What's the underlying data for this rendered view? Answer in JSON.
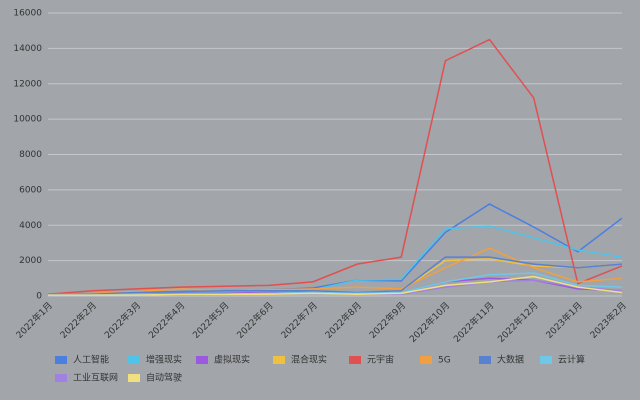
{
  "chart_data": {
    "type": "line",
    "categories": [
      "2022年1月",
      "2022年2月",
      "2022年3月",
      "2022年4月",
      "2022年5月",
      "2022年6月",
      "2022年7月",
      "2022年8月",
      "2022年9月",
      "2022年10月",
      "2022年11月",
      "2022年12月",
      "2023年1月",
      "2023年2月"
    ],
    "series": [
      {
        "name": "人工智能",
        "color": "#4a7fe0",
        "values": [
          100,
          150,
          200,
          250,
          300,
          350,
          450,
          900,
          850,
          3600,
          5200,
          3900,
          2500,
          4400
        ]
      },
      {
        "name": "增强现实",
        "color": "#4fc3e8",
        "values": [
          50,
          100,
          150,
          200,
          250,
          300,
          350,
          900,
          950,
          3800,
          3950,
          3300,
          2600,
          2200
        ]
      },
      {
        "name": "虚拟现实",
        "color": "#9b59e0",
        "values": [
          50,
          50,
          100,
          150,
          150,
          200,
          200,
          150,
          200,
          800,
          1000,
          900,
          400,
          300
        ]
      },
      {
        "name": "混合现实",
        "color": "#f0c040",
        "values": [
          50,
          50,
          100,
          100,
          100,
          150,
          200,
          200,
          300,
          2000,
          2100,
          1700,
          1600,
          1800
        ]
      },
      {
        "name": "元宇宙",
        "color": "#e05050",
        "values": [
          100,
          300,
          400,
          500,
          550,
          600,
          800,
          1800,
          2200,
          13300,
          14500,
          11200,
          700,
          1700
        ]
      },
      {
        "name": "5G",
        "color": "#f0a040",
        "values": [
          100,
          150,
          250,
          400,
          300,
          350,
          400,
          500,
          400,
          1600,
          2700,
          1600,
          800,
          1000
        ]
      },
      {
        "name": "大数据",
        "color": "#5a80d0",
        "values": [
          100,
          100,
          200,
          250,
          300,
          300,
          300,
          200,
          300,
          2200,
          2200,
          1800,
          1600,
          1800
        ]
      },
      {
        "name": "云计算",
        "color": "#70c8e8",
        "values": [
          50,
          50,
          100,
          100,
          100,
          150,
          200,
          150,
          200,
          800,
          1200,
          1300,
          600,
          500
        ]
      },
      {
        "name": "工业互联网",
        "color": "#a080e0",
        "values": [
          50,
          50,
          50,
          100,
          100,
          100,
          150,
          100,
          100,
          500,
          800,
          900,
          500,
          300
        ]
      },
      {
        "name": "自动驾驶",
        "color": "#f0e080",
        "values": [
          50,
          50,
          50,
          100,
          100,
          100,
          150,
          100,
          150,
          600,
          800,
          1100,
          500,
          200
        ]
      }
    ],
    "ylim": [
      0,
      16000
    ],
    "yticks": [
      0,
      2000,
      4000,
      6000,
      8000,
      10000,
      12000,
      14000,
      16000
    ],
    "grid": true,
    "legend_position": "bottom"
  }
}
